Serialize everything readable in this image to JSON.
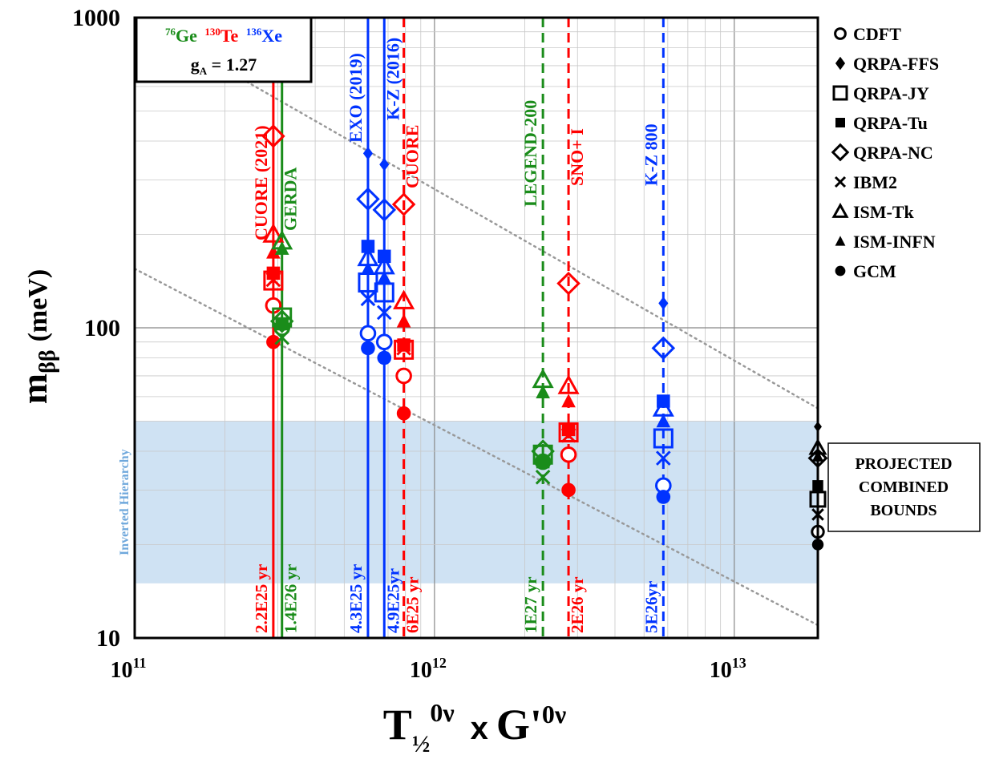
{
  "chart_data": {
    "type": "scatter",
    "title": "",
    "xlabel": "T½⁰ᵛ x G'⁰ᵛ",
    "ylabel": "mββ (meV)",
    "x_scale": "log",
    "y_scale": "log",
    "xlim": [
      100000000000.0,
      19000000000000.0
    ],
    "ylim": [
      10,
      1000
    ],
    "x_ticks": [
      {
        "value": 100000000000.0,
        "label": "10",
        "exp": "11"
      },
      {
        "value": 1000000000000.0,
        "label": "10",
        "exp": "12"
      },
      {
        "value": 10000000000000.0,
        "label": "10",
        "exp": "13"
      }
    ],
    "y_ticks": [
      {
        "value": 10,
        "label": "10"
      },
      {
        "value": 100,
        "label": "100"
      },
      {
        "value": 1000,
        "label": "1000"
      }
    ],
    "inset_box": {
      "ge": "76",
      "ge_label": "Ge",
      "te": "130",
      "te_label": "Te",
      "xe": "136",
      "xe_label": "Xe",
      "ga_text": "g",
      "ga_sub": "A",
      "ga_value": " = 1.27"
    },
    "band": {
      "label": "Inverted Hierarchy",
      "y_low": 15,
      "y_high": 50,
      "color": "#cfe2f3"
    },
    "colors": {
      "Ge": "#1a8c1a",
      "Te": "#ff0000",
      "Xe": "#0033ff",
      "combined": "#000000"
    },
    "legend": [
      {
        "marker": "open-circle",
        "label": "CDFT"
      },
      {
        "marker": "diamond-filled",
        "label": "QRPA-FFS"
      },
      {
        "marker": "open-square",
        "label": "QRPA-JY"
      },
      {
        "marker": "filled-square",
        "label": "QRPA-Tu"
      },
      {
        "marker": "open-diamond",
        "label": "QRPA-NC"
      },
      {
        "marker": "x",
        "label": "IBM2"
      },
      {
        "marker": "open-triangle",
        "label": "ISM-Tk"
      },
      {
        "marker": "filled-triangle",
        "label": "ISM-INFN"
      },
      {
        "marker": "filled-circle",
        "label": "GCM"
      }
    ],
    "experiments": [
      {
        "name": "CUORE (2021)",
        "x": 290000000000.0,
        "iso": "Te",
        "style": "solid",
        "time": "2.2E25 yr",
        "label_side": "left"
      },
      {
        "name": "GERDA",
        "x": 310000000000.0,
        "iso": "Ge",
        "style": "solid",
        "time": "1.4E26 yr",
        "label_side": "right"
      },
      {
        "name": "EXO (2019)",
        "x": 600000000000.0,
        "iso": "Xe",
        "style": "solid",
        "time": "4.3E25 yr",
        "label_side": "left"
      },
      {
        "name": "K-Z (2016)",
        "x": 680000000000.0,
        "iso": "Xe",
        "style": "solid",
        "time": "4.9E25yr",
        "label_side": "right"
      },
      {
        "name": "CUORE",
        "x": 790000000000.0,
        "iso": "Te",
        "style": "dashed",
        "time": "6E25 yr",
        "label_side": "right"
      },
      {
        "name": "LEGEND-200",
        "x": 2300000000000.0,
        "iso": "Ge",
        "style": "dashed",
        "time": "1E27 yr",
        "label_side": "left"
      },
      {
        "name": "SNO+ I",
        "x": 2800000000000.0,
        "iso": "Te",
        "style": "dashed",
        "time": "2E26 yr",
        "label_side": "right"
      },
      {
        "name": "K-Z 800",
        "x": 5800000000000.0,
        "iso": "Xe",
        "style": "dashed",
        "time": "5E26yr",
        "label_side": "left"
      }
    ],
    "points": [
      {
        "iso": "Te",
        "x": 290000000000.0,
        "y": 118,
        "m": "open-circle"
      },
      {
        "iso": "Te",
        "x": 290000000000.0,
        "y": 415,
        "m": "open-diamond"
      },
      {
        "iso": "Te",
        "x": 290000000000.0,
        "y": 142,
        "m": "open-square"
      },
      {
        "iso": "Te",
        "x": 290000000000.0,
        "y": 150,
        "m": "filled-square"
      },
      {
        "iso": "Te",
        "x": 290000000000.0,
        "y": 143,
        "m": "x"
      },
      {
        "iso": "Te",
        "x": 290000000000.0,
        "y": 200,
        "m": "open-triangle"
      },
      {
        "iso": "Te",
        "x": 290000000000.0,
        "y": 175,
        "m": "filled-triangle"
      },
      {
        "iso": "Te",
        "x": 290000000000.0,
        "y": 90,
        "m": "filled-circle"
      },
      {
        "iso": "Ge",
        "x": 310000000000.0,
        "y": 100,
        "m": "open-circle"
      },
      {
        "iso": "Ge",
        "x": 310000000000.0,
        "y": 105,
        "m": "open-diamond"
      },
      {
        "iso": "Ge",
        "x": 310000000000.0,
        "y": 108,
        "m": "open-square"
      },
      {
        "iso": "Ge",
        "x": 310000000000.0,
        "y": 103,
        "m": "filled-square"
      },
      {
        "iso": "Ge",
        "x": 310000000000.0,
        "y": 93,
        "m": "x"
      },
      {
        "iso": "Ge",
        "x": 310000000000.0,
        "y": 190,
        "m": "open-triangle"
      },
      {
        "iso": "Ge",
        "x": 310000000000.0,
        "y": 180,
        "m": "filled-triangle"
      },
      {
        "iso": "Xe",
        "x": 600000000000.0,
        "y": 96,
        "m": "open-circle"
      },
      {
        "iso": "Xe",
        "x": 600000000000.0,
        "y": 365,
        "m": "diamond-filled"
      },
      {
        "iso": "Xe",
        "x": 600000000000.0,
        "y": 260,
        "m": "open-diamond"
      },
      {
        "iso": "Xe",
        "x": 600000000000.0,
        "y": 140,
        "m": "open-square"
      },
      {
        "iso": "Xe",
        "x": 600000000000.0,
        "y": 183,
        "m": "filled-square"
      },
      {
        "iso": "Xe",
        "x": 600000000000.0,
        "y": 124,
        "m": "x"
      },
      {
        "iso": "Xe",
        "x": 600000000000.0,
        "y": 168,
        "m": "open-triangle"
      },
      {
        "iso": "Xe",
        "x": 600000000000.0,
        "y": 155,
        "m": "filled-triangle"
      },
      {
        "iso": "Xe",
        "x": 600000000000.0,
        "y": 86,
        "m": "filled-circle"
      },
      {
        "iso": "Xe",
        "x": 680000000000.0,
        "y": 90,
        "m": "open-circle"
      },
      {
        "iso": "Xe",
        "x": 680000000000.0,
        "y": 336,
        "m": "diamond-filled"
      },
      {
        "iso": "Xe",
        "x": 680000000000.0,
        "y": 240,
        "m": "open-diamond"
      },
      {
        "iso": "Xe",
        "x": 680000000000.0,
        "y": 130,
        "m": "open-square"
      },
      {
        "iso": "Xe",
        "x": 680000000000.0,
        "y": 170,
        "m": "filled-square"
      },
      {
        "iso": "Xe",
        "x": 680000000000.0,
        "y": 112,
        "m": "x"
      },
      {
        "iso": "Xe",
        "x": 680000000000.0,
        "y": 158,
        "m": "open-triangle"
      },
      {
        "iso": "Xe",
        "x": 680000000000.0,
        "y": 145,
        "m": "filled-triangle"
      },
      {
        "iso": "Xe",
        "x": 680000000000.0,
        "y": 80,
        "m": "filled-circle"
      },
      {
        "iso": "Te",
        "x": 790000000000.0,
        "y": 70,
        "m": "open-circle"
      },
      {
        "iso": "Te",
        "x": 790000000000.0,
        "y": 250,
        "m": "open-diamond"
      },
      {
        "iso": "Te",
        "x": 790000000000.0,
        "y": 85,
        "m": "open-square"
      },
      {
        "iso": "Te",
        "x": 790000000000.0,
        "y": 88,
        "m": "filled-square"
      },
      {
        "iso": "Te",
        "x": 790000000000.0,
        "y": 86,
        "m": "x"
      },
      {
        "iso": "Te",
        "x": 790000000000.0,
        "y": 122,
        "m": "open-triangle"
      },
      {
        "iso": "Te",
        "x": 790000000000.0,
        "y": 105,
        "m": "filled-triangle"
      },
      {
        "iso": "Te",
        "x": 790000000000.0,
        "y": 53,
        "m": "filled-circle"
      },
      {
        "iso": "Ge",
        "x": 2300000000000.0,
        "y": 37,
        "m": "open-circle"
      },
      {
        "iso": "Ge",
        "x": 2300000000000.0,
        "y": 40,
        "m": "open-diamond"
      },
      {
        "iso": "Ge",
        "x": 2300000000000.0,
        "y": 39,
        "m": "open-square"
      },
      {
        "iso": "Ge",
        "x": 2300000000000.0,
        "y": 37,
        "m": "filled-square"
      },
      {
        "iso": "Ge",
        "x": 2300000000000.0,
        "y": 33,
        "m": "x"
      },
      {
        "iso": "Ge",
        "x": 2300000000000.0,
        "y": 68,
        "m": "open-triangle"
      },
      {
        "iso": "Ge",
        "x": 2300000000000.0,
        "y": 62,
        "m": "filled-triangle"
      },
      {
        "iso": "Te",
        "x": 2800000000000.0,
        "y": 39,
        "m": "open-circle"
      },
      {
        "iso": "Te",
        "x": 2800000000000.0,
        "y": 139,
        "m": "open-diamond"
      },
      {
        "iso": "Te",
        "x": 2800000000000.0,
        "y": 46,
        "m": "open-square"
      },
      {
        "iso": "Te",
        "x": 2800000000000.0,
        "y": 47,
        "m": "filled-square"
      },
      {
        "iso": "Te",
        "x": 2800000000000.0,
        "y": 45,
        "m": "x"
      },
      {
        "iso": "Te",
        "x": 2800000000000.0,
        "y": 65,
        "m": "open-triangle"
      },
      {
        "iso": "Te",
        "x": 2800000000000.0,
        "y": 58,
        "m": "filled-triangle"
      },
      {
        "iso": "Te",
        "x": 2800000000000.0,
        "y": 30,
        "m": "filled-circle"
      },
      {
        "iso": "Xe",
        "x": 5800000000000.0,
        "y": 31,
        "m": "open-circle"
      },
      {
        "iso": "Xe",
        "x": 5800000000000.0,
        "y": 120,
        "m": "diamond-filled"
      },
      {
        "iso": "Xe",
        "x": 5800000000000.0,
        "y": 86,
        "m": "open-diamond"
      },
      {
        "iso": "Xe",
        "x": 5800000000000.0,
        "y": 44,
        "m": "open-square"
      },
      {
        "iso": "Xe",
        "x": 5800000000000.0,
        "y": 58,
        "m": "filled-square"
      },
      {
        "iso": "Xe",
        "x": 5800000000000.0,
        "y": 38,
        "m": "x"
      },
      {
        "iso": "Xe",
        "x": 5800000000000.0,
        "y": 55,
        "m": "open-triangle"
      },
      {
        "iso": "Xe",
        "x": 5800000000000.0,
        "y": 50,
        "m": "filled-triangle"
      },
      {
        "iso": "Xe",
        "x": 5800000000000.0,
        "y": 28.5,
        "m": "filled-circle"
      },
      {
        "iso": "combined",
        "x": 19000000000000.0,
        "y": 22,
        "m": "open-circle"
      },
      {
        "iso": "combined",
        "x": 19000000000000.0,
        "y": 48,
        "m": "diamond-filled"
      },
      {
        "iso": "combined",
        "x": 19000000000000.0,
        "y": 28,
        "m": "open-square"
      },
      {
        "iso": "combined",
        "x": 19000000000000.0,
        "y": 31,
        "m": "filled-square"
      },
      {
        "iso": "combined",
        "x": 19000000000000.0,
        "y": 38,
        "m": "open-diamond"
      },
      {
        "iso": "combined",
        "x": 19000000000000.0,
        "y": 25,
        "m": "x"
      },
      {
        "iso": "combined",
        "x": 19000000000000.0,
        "y": 41,
        "m": "open-triangle"
      },
      {
        "iso": "combined",
        "x": 19000000000000.0,
        "y": 38.5,
        "m": "filled-triangle"
      },
      {
        "iso": "combined",
        "x": 19000000000000.0,
        "y": 20,
        "m": "filled-circle"
      }
    ],
    "guide_lines": [
      {
        "from": [
          100000000000.0,
          1000
        ],
        "to": [
          19000000000000.0,
          55
        ]
      },
      {
        "from": [
          100000000000.0,
          155
        ],
        "to": [
          19000000000000.0,
          11
        ]
      }
    ],
    "combined_label": [
      "PROJECTED",
      "COMBINED",
      "BOUNDS"
    ]
  }
}
